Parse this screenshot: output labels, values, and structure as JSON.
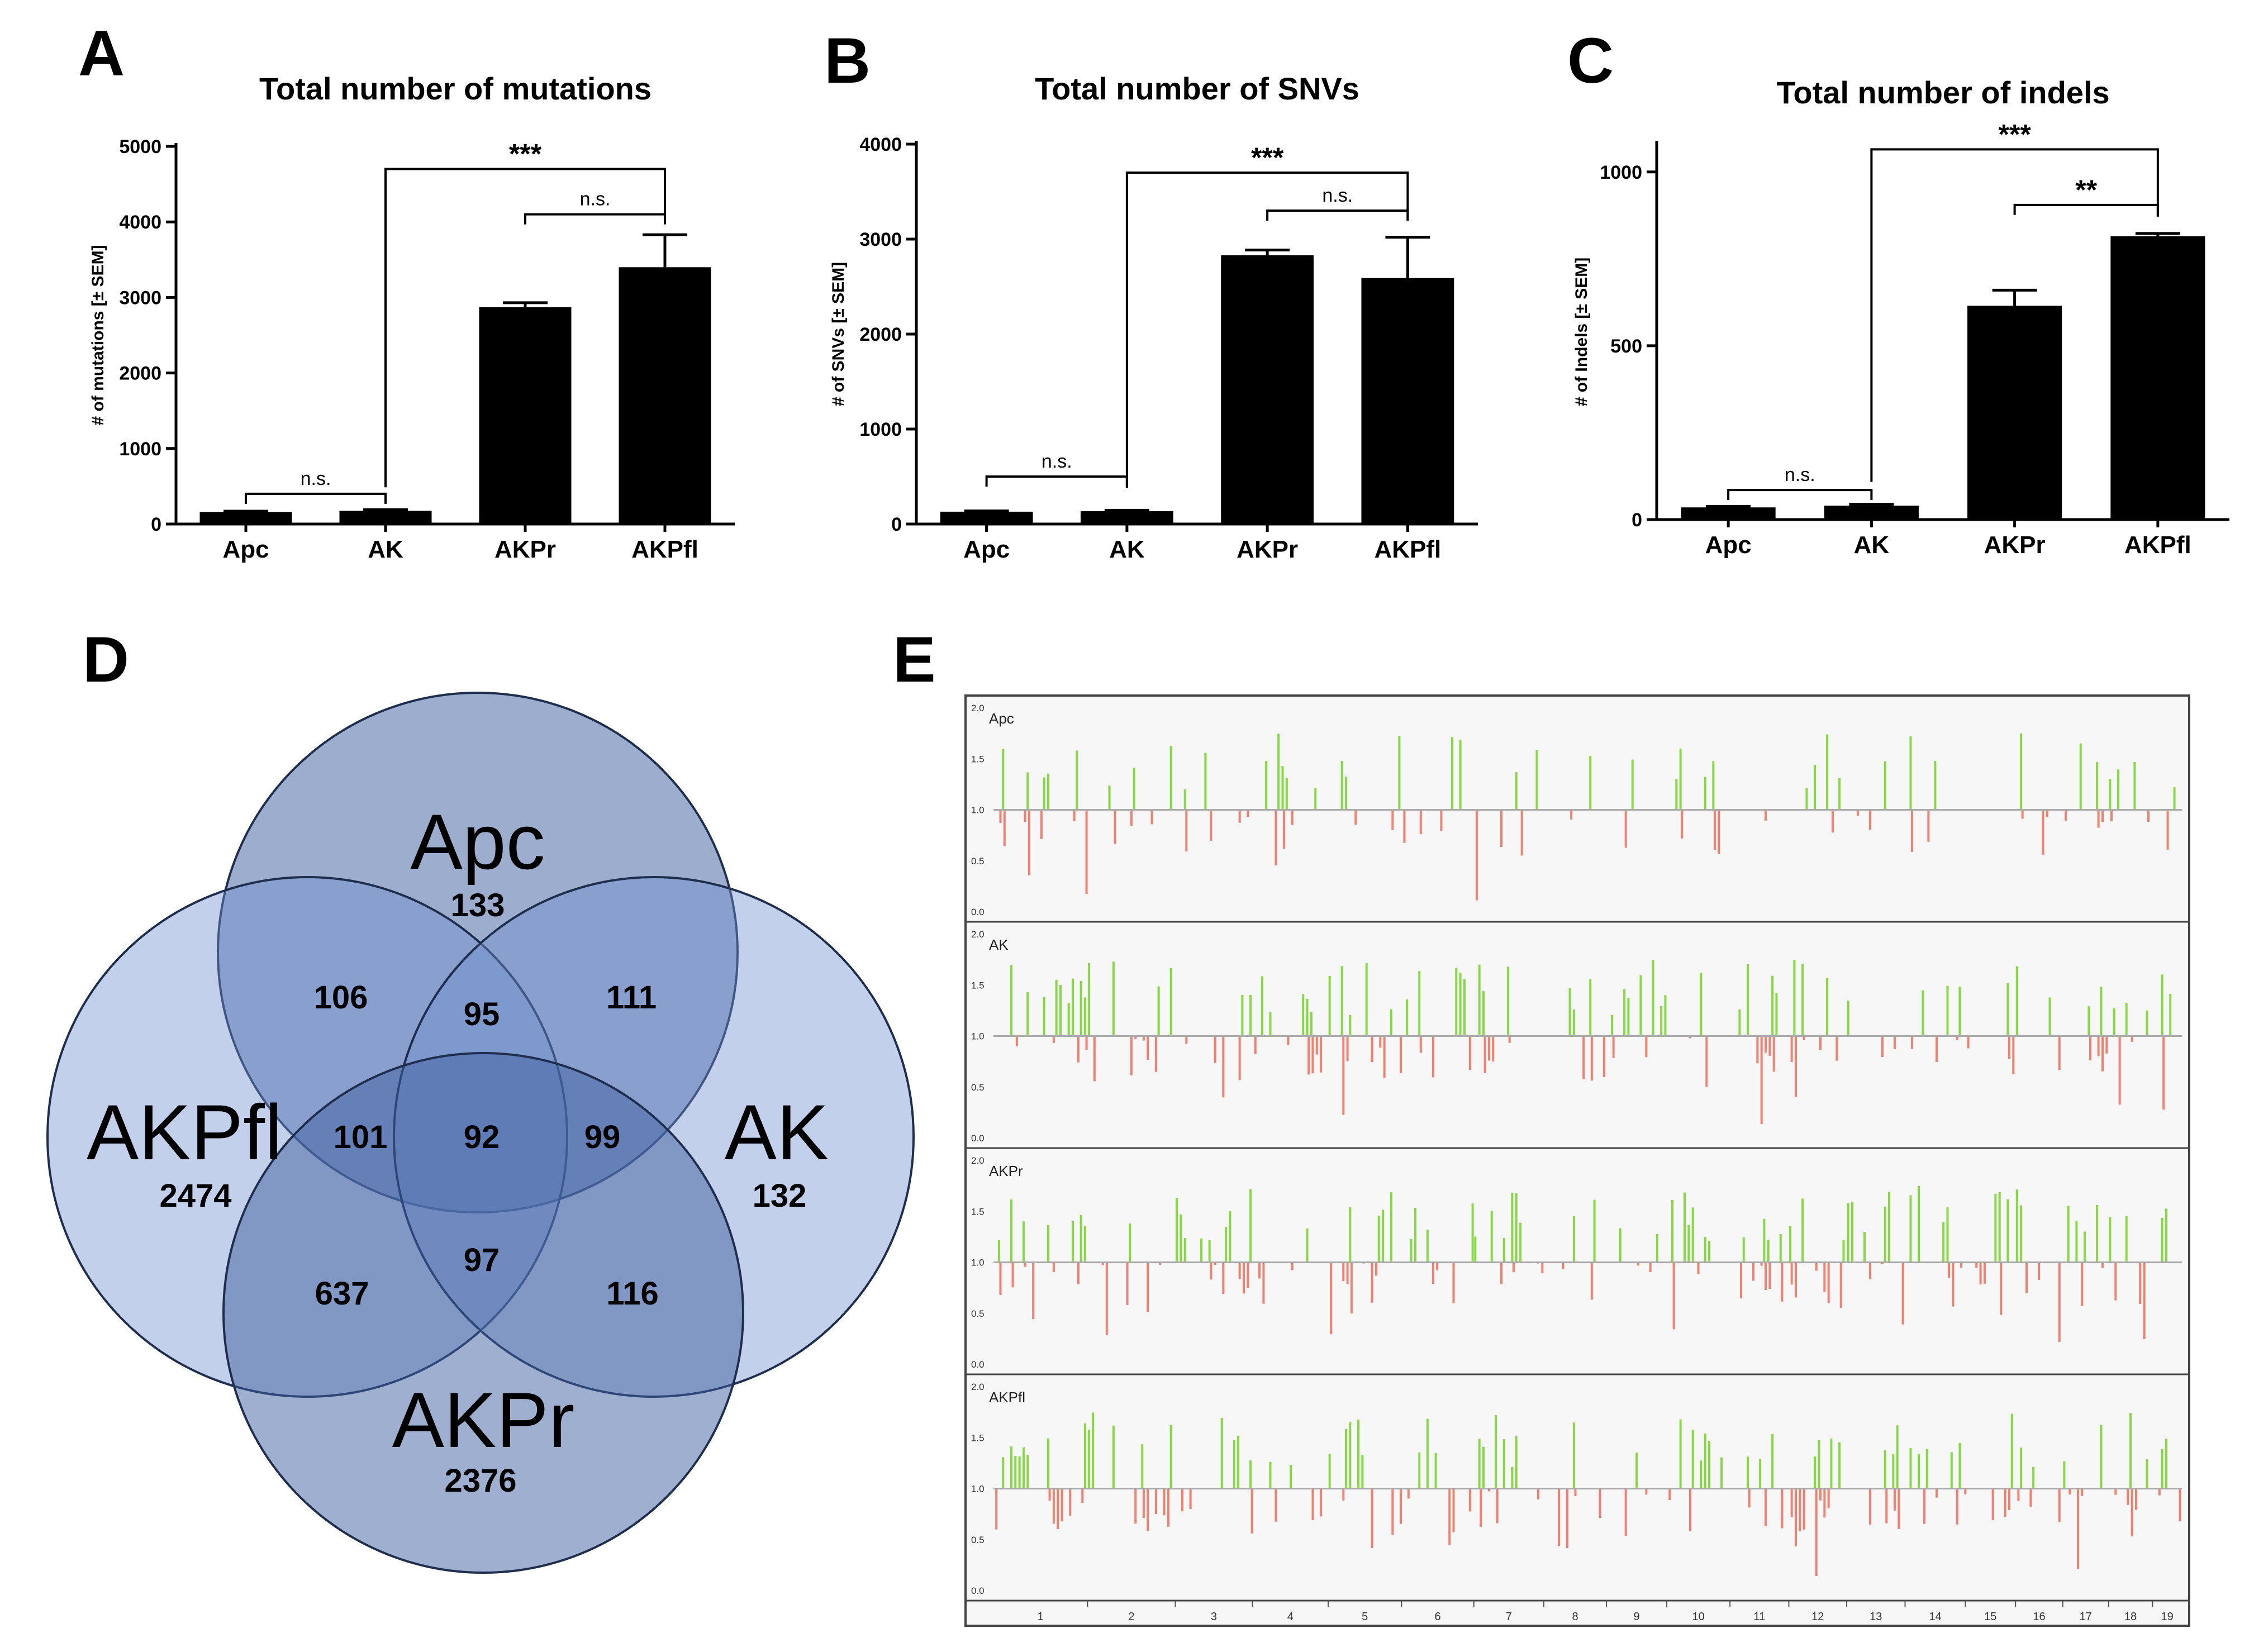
{
  "figure_labels": [
    "A",
    "B",
    "C",
    "D",
    "E"
  ],
  "chart_data": [
    {
      "id": "A",
      "type": "bar",
      "title": "Total number of mutations",
      "ylabel": "# of mutations [± SEM]",
      "categories": [
        "Apc",
        "AK",
        "AKPr",
        "AKPfl"
      ],
      "values": [
        160,
        175,
        2870,
        3400
      ],
      "errors": [
        10,
        15,
        60,
        430
      ],
      "ylim": [
        0,
        5000
      ],
      "yticks": [
        0,
        1000,
        2000,
        3000,
        4000,
        5000
      ],
      "ytick_labels": [
        "0",
        "1000",
        "2000",
        "3000",
        "4000",
        "5000"
      ],
      "significance": [
        {
          "from": 0,
          "to": 1,
          "label": "n.s.",
          "y": 400
        },
        {
          "from": 2,
          "to": 3,
          "label": "n.s.",
          "y": 4100
        },
        {
          "from": 1,
          "to": 3,
          "label": "***",
          "y": 4700
        }
      ]
    },
    {
      "id": "B",
      "type": "bar",
      "title": "Total number of SNVs",
      "ylabel": "# of SNVs [± SEM]",
      "categories": [
        "Apc",
        "AK",
        "AKPr",
        "AKPfl"
      ],
      "values": [
        130,
        135,
        2830,
        2590
      ],
      "errors": [
        8,
        10,
        55,
        430
      ],
      "ylim": [
        0,
        4000
      ],
      "yticks": [
        0,
        1000,
        2000,
        3000,
        4000
      ],
      "ytick_labels": [
        "0",
        "1000",
        "2000",
        "3000",
        "4000"
      ],
      "significance": [
        {
          "from": 0,
          "to": 1,
          "label": "n.s.",
          "y": 500
        },
        {
          "from": 2,
          "to": 3,
          "label": "n.s.",
          "y": 3300
        },
        {
          "from": 1,
          "to": 3,
          "label": "***",
          "y": 3700
        }
      ]
    },
    {
      "id": "C",
      "type": "bar",
      "title": "Total number of indels",
      "ylabel": "# of Indels  [± SEM]",
      "categories": [
        "Apc",
        "AK",
        "AKPr",
        "AKPfl"
      ],
      "values": [
        35,
        40,
        615,
        815
      ],
      "errors": [
        3,
        4,
        45,
        8
      ],
      "ylim": [
        0,
        1080
      ],
      "yticks": [
        0,
        500,
        1000
      ],
      "ytick_labels": [
        "0",
        "500",
        "1000"
      ],
      "significance": [
        {
          "from": 0,
          "to": 1,
          "label": "n.s.",
          "y": 85
        },
        {
          "from": 2,
          "to": 3,
          "label": "**",
          "y": 905
        },
        {
          "from": 1,
          "to": 3,
          "label": "***",
          "y": 1065
        }
      ]
    },
    {
      "id": "D",
      "type": "venn",
      "sets": [
        {
          "name": "Apc",
          "unique": "133"
        },
        {
          "name": "AKPfl",
          "unique": "2474"
        },
        {
          "name": "AK",
          "unique": "132"
        },
        {
          "name": "AKPr",
          "unique": "2376"
        }
      ],
      "regions": [
        {
          "sets": [
            "Apc",
            "AKPfl"
          ],
          "count": "106"
        },
        {
          "sets": [
            "Apc",
            "AKPfl",
            "AK"
          ],
          "count": "95"
        },
        {
          "sets": [
            "Apc",
            "AK"
          ],
          "count": "111"
        },
        {
          "sets": [
            "Apc",
            "AKPfl",
            "AKPr"
          ],
          "count": "101"
        },
        {
          "sets": [
            "Apc",
            "AKPfl",
            "AK",
            "AKPr"
          ],
          "count": "92"
        },
        {
          "sets": [
            "Apc",
            "AK",
            "AKPr"
          ],
          "count": "99"
        },
        {
          "sets": [
            "AKPfl",
            "AK",
            "AKPr"
          ],
          "count": "97"
        },
        {
          "sets": [
            "AKPfl",
            "AKPr"
          ],
          "count": "637"
        },
        {
          "sets": [
            "AK",
            "AKPr"
          ],
          "count": "116"
        }
      ]
    },
    {
      "id": "E",
      "type": "copy_number_profile",
      "baseline": 1.0,
      "ylim": [
        0.0,
        2.0
      ],
      "ytick_labels": [
        "2.0",
        "1.5",
        "1.0",
        "0.5",
        "0.0"
      ],
      "ytick_values": [
        2.0,
        1.5,
        1.0,
        0.5,
        0.0
      ],
      "chromosomes": [
        "1",
        "2",
        "3",
        "4",
        "5",
        "6",
        "7",
        "8",
        "9",
        "10",
        "11",
        "12",
        "13",
        "14",
        "15",
        "16",
        "17",
        "18",
        "19"
      ],
      "chromosome_lengths": [
        195,
        182,
        160,
        157,
        152,
        150,
        145,
        130,
        125,
        131,
        122,
        120,
        121,
        125,
        104,
        98,
        95,
        91,
        61
      ],
      "colors": {
        "gain": "#86d944",
        "loss": "#f08070",
        "axis": "#555555",
        "panel_bg": "#f7f7f7",
        "border": "#444444"
      },
      "samples": [
        {
          "name": "Apc",
          "gain_density": 0.34,
          "loss_density": 0.3,
          "seed": 11
        },
        {
          "name": "AK",
          "gain_density": 0.4,
          "loss_density": 0.36,
          "seed": 23
        },
        {
          "name": "AKPr",
          "gain_density": 0.42,
          "loss_density": 0.5,
          "seed": 37
        },
        {
          "name": "AKPfl",
          "gain_density": 0.4,
          "loss_density": 0.44,
          "seed": 53
        }
      ]
    }
  ],
  "colors": {
    "bar": "#000000",
    "venn_fill": "#4a6aa5",
    "venn_stroke": "#1e2e4c",
    "text": "#000000"
  }
}
